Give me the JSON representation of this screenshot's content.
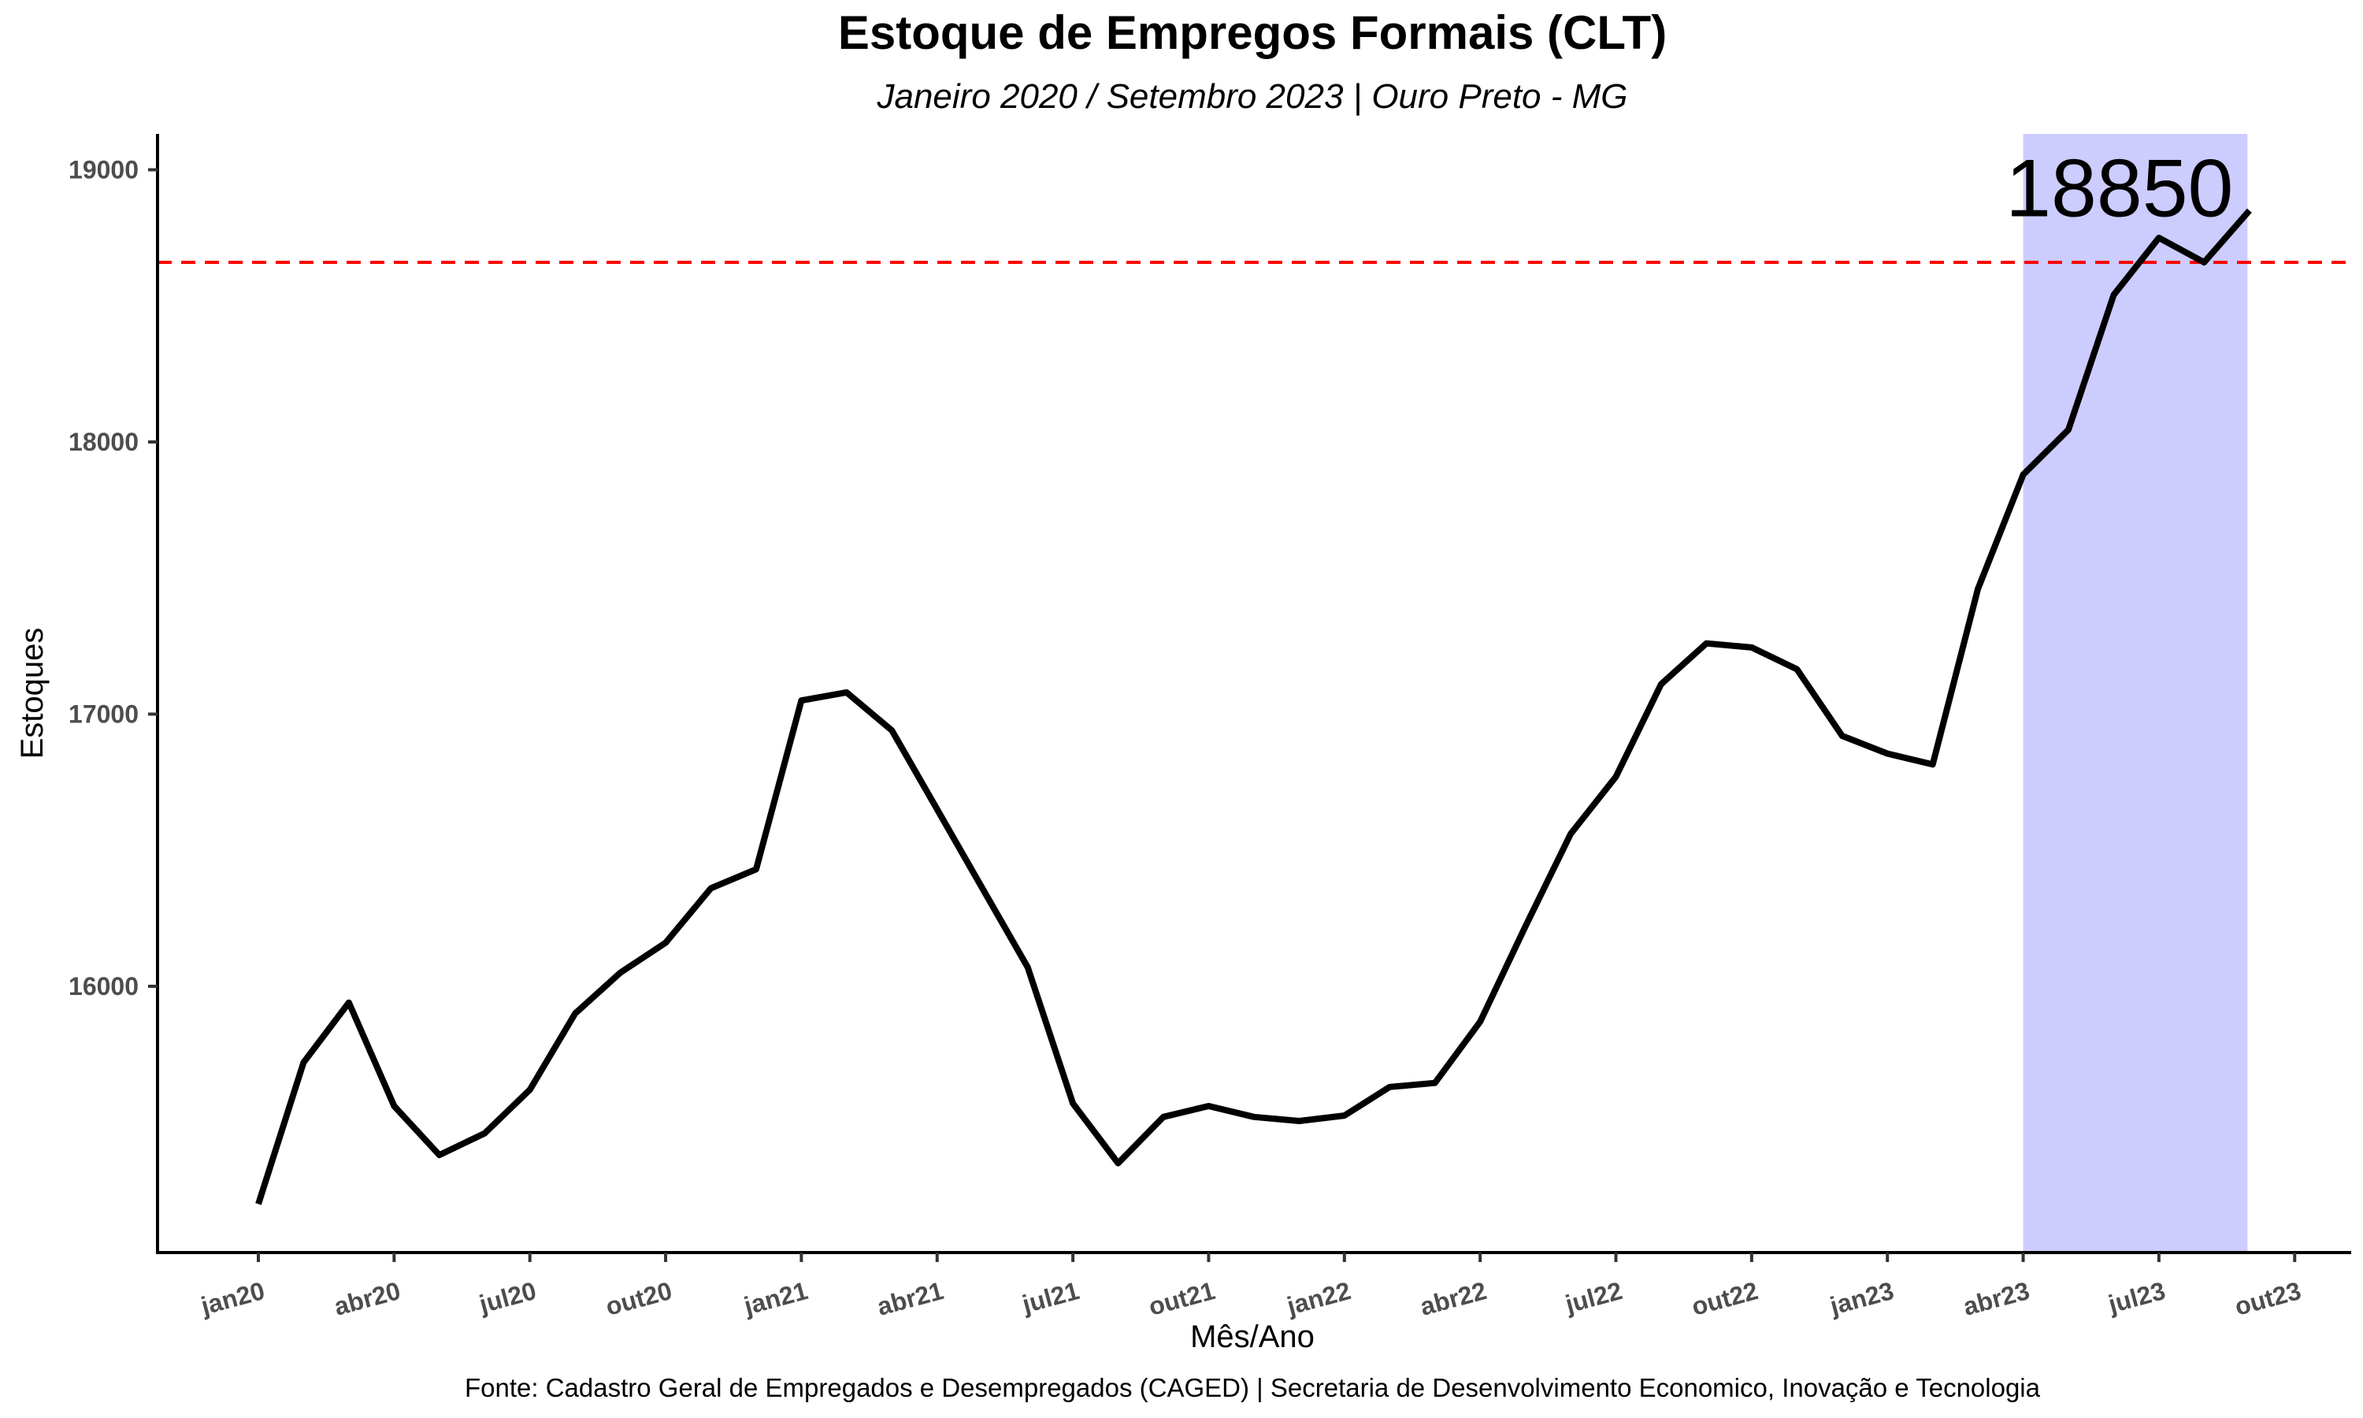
{
  "chart_data": {
    "type": "line",
    "title": "Estoque de Empregos Formais (CLT)",
    "subtitle": "Janeiro 2020 / Setembro 2023 | Ouro Preto - MG",
    "xlabel": "Mês/Ano",
    "ylabel": "Estoques",
    "caption": "Fonte: Cadastro Geral de Empregados e Desempregados (CAGED) | Secretaria de Desenvolvimento Economico, Inovação e Tecnologia",
    "x_tick_labels": [
      "jan20",
      "abr20",
      "jul20",
      "out20",
      "jan21",
      "abr21",
      "jul21",
      "out21",
      "jan22",
      "abr22",
      "jul22",
      "out22",
      "jan23",
      "abr23",
      "jul23",
      "out23"
    ],
    "y_ticks": [
      16000,
      17000,
      18000,
      19000
    ],
    "ylim": [
      15020,
      19130
    ],
    "grid": false,
    "series": [
      {
        "name": "",
        "color": "#000000",
        "x": [
          "2020-01",
          "2020-02",
          "2020-03",
          "2020-04",
          "2020-05",
          "2020-06",
          "2020-07",
          "2020-08",
          "2020-09",
          "2020-10",
          "2020-11",
          "2020-12",
          "2021-01",
          "2021-02",
          "2021-03",
          "2021-04",
          "2021-05",
          "2021-06",
          "2021-07",
          "2021-08",
          "2021-09",
          "2021-10",
          "2021-11",
          "2021-12",
          "2022-01",
          "2022-02",
          "2022-03",
          "2022-04",
          "2022-05",
          "2022-06",
          "2022-07",
          "2022-08",
          "2022-09",
          "2022-10",
          "2022-11",
          "2022-12",
          "2023-01",
          "2023-02",
          "2023-03",
          "2023-04",
          "2023-05",
          "2023-06",
          "2023-07",
          "2023-08",
          "2023-09"
        ],
        "values": [
          15200,
          15720,
          15940,
          15560,
          15380,
          15460,
          15620,
          15900,
          16050,
          16160,
          16360,
          16430,
          17050,
          17080,
          16940,
          16650,
          16360,
          16070,
          15570,
          15350,
          15520,
          15560,
          15520,
          15505,
          15525,
          15630,
          15645,
          15870,
          16220,
          16560,
          16770,
          17110,
          17260,
          17245,
          17165,
          16920,
          16855,
          16815,
          17460,
          17880,
          18045,
          18540,
          18750,
          18660,
          18850
        ]
      }
    ],
    "reference_line": {
      "y": 18660,
      "color": "#ff0000",
      "style": "dashed"
    },
    "highlight_band": {
      "x_start": "2023-04",
      "x_end": "2023-08",
      "color": "#ccccff"
    },
    "annotation": {
      "text": "18850",
      "x": "2023-09",
      "y": 18850
    }
  }
}
